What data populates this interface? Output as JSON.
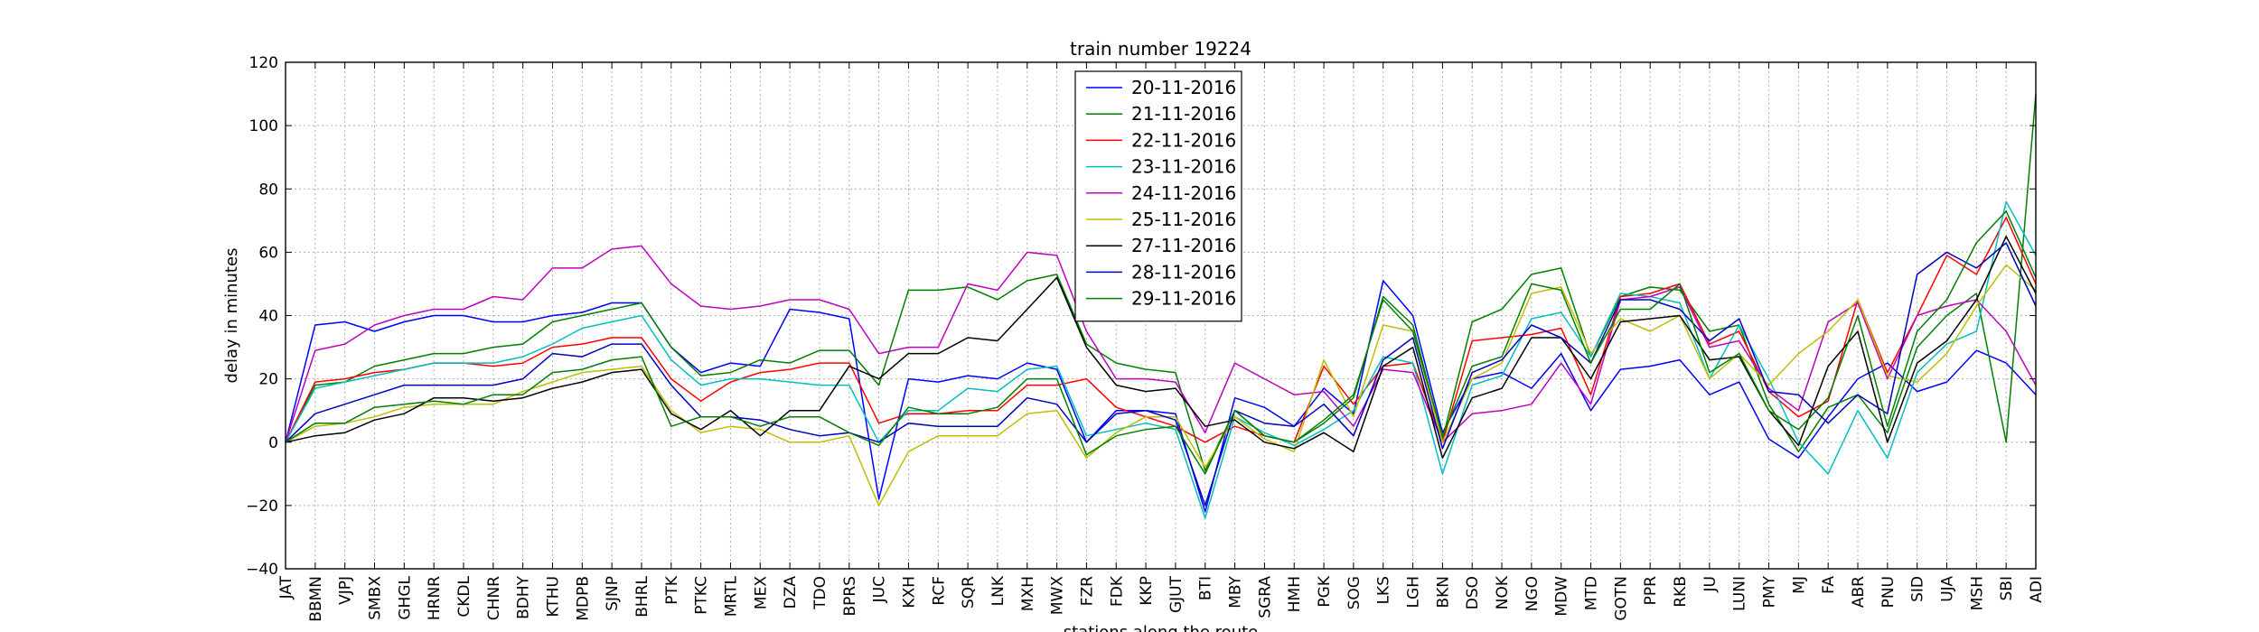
{
  "chart_data": {
    "type": "line",
    "title": "train number 19224",
    "xlabel": "stations along the route",
    "ylabel": "delay in minutes",
    "ylim": [
      -40,
      120
    ],
    "yticks": [
      -40,
      -20,
      0,
      20,
      40,
      60,
      80,
      100,
      120
    ],
    "grid": true,
    "legend_position": "top-center",
    "categories": [
      "JAT",
      "BBMN",
      "VJPJ",
      "SMBX",
      "GHGL",
      "HRNR",
      "CKDL",
      "CHNR",
      "BDHY",
      "KTHU",
      "MDPB",
      "SJNP",
      "BHRL",
      "PTK",
      "PTKC",
      "MRTL",
      "MEX",
      "DZA",
      "TDO",
      "BPRS",
      "JUC",
      "KXH",
      "RCF",
      "SQR",
      "LNK",
      "MXH",
      "MWX",
      "FZR",
      "FDK",
      "KKP",
      "GJUT",
      "BTI",
      "MBY",
      "SGRA",
      "HMH",
      "PGK",
      "SOG",
      "LKS",
      "LGH",
      "BKN",
      "DSO",
      "NOK",
      "NGO",
      "MDW",
      "MTD",
      "GOTN",
      "PPR",
      "RKB",
      "JU",
      "LUNI",
      "PMY",
      "MJ",
      "FA",
      "ABR",
      "PNU",
      "SID",
      "UJA",
      "MSH",
      "SBI",
      "ADI"
    ],
    "series": [
      {
        "name": "20-11-2016",
        "color": "#0000ff",
        "values": [
          0,
          37,
          38,
          35,
          38,
          40,
          40,
          38,
          38,
          40,
          41,
          44,
          44,
          30,
          22,
          25,
          24,
          42,
          41,
          39,
          -18,
          20,
          19,
          21,
          20,
          25,
          23,
          0,
          10,
          10,
          9,
          -22,
          14,
          11,
          5,
          17,
          9,
          51,
          40,
          3,
          20,
          22,
          17,
          28,
          10,
          23,
          24,
          26,
          15,
          19,
          1,
          -5,
          8,
          20,
          25,
          16,
          19,
          29,
          25,
          15
        ]
      },
      {
        "name": "21-11-2016",
        "color": "#008000",
        "values": [
          0,
          18,
          19,
          24,
          26,
          28,
          28,
          30,
          31,
          38,
          40,
          42,
          44,
          30,
          21,
          22,
          26,
          25,
          29,
          29,
          18,
          48,
          48,
          49,
          45,
          51,
          53,
          31,
          25,
          23,
          22,
          -9,
          10,
          2,
          0,
          6,
          14,
          46,
          37,
          1,
          38,
          42,
          53,
          55,
          27,
          46,
          49,
          48,
          35,
          37,
          12,
          -3,
          11,
          15,
          3,
          30,
          40,
          47,
          0,
          110
        ]
      },
      {
        "name": "22-11-2016",
        "color": "#ff0000",
        "values": [
          0,
          19,
          20,
          22,
          23,
          25,
          25,
          24,
          25,
          30,
          31,
          33,
          33,
          20,
          13,
          19,
          22,
          23,
          25,
          25,
          6,
          9,
          9,
          10,
          10,
          18,
          18,
          20,
          11,
          8,
          5,
          0,
          5,
          2,
          0,
          24,
          12,
          24,
          25,
          0,
          32,
          33,
          34,
          36,
          15,
          46,
          47,
          50,
          31,
          35,
          16,
          8,
          13,
          45,
          22,
          40,
          59,
          53,
          71,
          50
        ]
      },
      {
        "name": "23-11-2016",
        "color": "#00bfbf",
        "values": [
          0,
          17,
          19,
          21,
          23,
          25,
          25,
          25,
          27,
          31,
          36,
          38,
          40,
          26,
          18,
          20,
          20,
          19,
          18,
          18,
          0,
          10,
          10,
          17,
          16,
          23,
          24,
          2,
          4,
          6,
          4,
          -24,
          8,
          3,
          -1,
          4,
          10,
          27,
          25,
          -10,
          18,
          21,
          39,
          41,
          27,
          47,
          46,
          44,
          20,
          37,
          20,
          0,
          -10,
          10,
          -5,
          22,
          31,
          35,
          76,
          59
        ]
      },
      {
        "name": "24-11-2016",
        "color": "#bf00bf",
        "values": [
          0,
          29,
          31,
          37,
          40,
          42,
          42,
          46,
          45,
          55,
          55,
          61,
          62,
          50,
          43,
          42,
          43,
          45,
          45,
          42,
          28,
          30,
          30,
          50,
          48,
          60,
          59,
          35,
          20,
          20,
          19,
          3,
          25,
          20,
          15,
          16,
          5,
          23,
          22,
          0,
          9,
          10,
          12,
          25,
          12,
          45,
          46,
          49,
          30,
          32,
          17,
          10,
          38,
          44,
          20,
          40,
          43,
          45,
          35,
          18
        ]
      },
      {
        "name": "25-11-2016",
        "color": "#bfbf00",
        "values": [
          0,
          5,
          6,
          8,
          11,
          12,
          12,
          12,
          16,
          19,
          22,
          23,
          24,
          10,
          3,
          5,
          4,
          0,
          0,
          2,
          -20,
          -3,
          2,
          2,
          2,
          9,
          10,
          -5,
          3,
          8,
          8,
          -8,
          8,
          1,
          -3,
          26,
          8,
          37,
          35,
          0,
          20,
          25,
          47,
          49,
          28,
          39,
          35,
          40,
          20,
          28,
          18,
          28,
          35,
          45,
          21,
          19,
          28,
          43,
          56,
          48
        ]
      },
      {
        "name": "27-11-2016",
        "color": "#000000",
        "values": [
          0,
          2,
          3,
          7,
          9,
          14,
          14,
          13,
          14,
          17,
          19,
          22,
          23,
          9,
          4,
          10,
          2,
          10,
          10,
          24,
          20,
          28,
          28,
          33,
          32,
          42,
          52,
          30,
          18,
          16,
          17,
          5,
          7,
          0,
          -2,
          3,
          -3,
          24,
          30,
          -5,
          14,
          17,
          33,
          33,
          20,
          38,
          39,
          40,
          26,
          27,
          10,
          -1,
          24,
          35,
          0,
          25,
          32,
          45,
          65,
          47
        ]
      },
      {
        "name": "28-11-2016",
        "color": "#0000bf",
        "values": [
          0,
          9,
          12,
          15,
          18,
          18,
          18,
          18,
          20,
          28,
          27,
          31,
          31,
          18,
          8,
          8,
          7,
          4,
          2,
          3,
          0,
          6,
          5,
          5,
          5,
          14,
          12,
          0,
          9,
          10,
          7,
          -20,
          10,
          6,
          5,
          12,
          2,
          26,
          33,
          -2,
          22,
          26,
          37,
          33,
          25,
          45,
          45,
          42,
          32,
          39,
          16,
          15,
          6,
          15,
          9,
          53,
          60,
          55,
          63,
          43
        ]
      },
      {
        "name": "29-11-2016",
        "color": "#007f00",
        "values": [
          0,
          6,
          6,
          11,
          12,
          13,
          12,
          15,
          15,
          22,
          23,
          26,
          27,
          5,
          8,
          8,
          5,
          8,
          8,
          3,
          -1,
          11,
          9,
          9,
          11,
          20,
          20,
          -4,
          2,
          4,
          5,
          -10,
          10,
          2,
          0,
          7,
          15,
          45,
          35,
          2,
          24,
          27,
          50,
          48,
          25,
          42,
          42,
          50,
          22,
          28,
          10,
          4,
          14,
          40,
          5,
          35,
          45,
          63,
          73,
          52
        ]
      }
    ]
  }
}
